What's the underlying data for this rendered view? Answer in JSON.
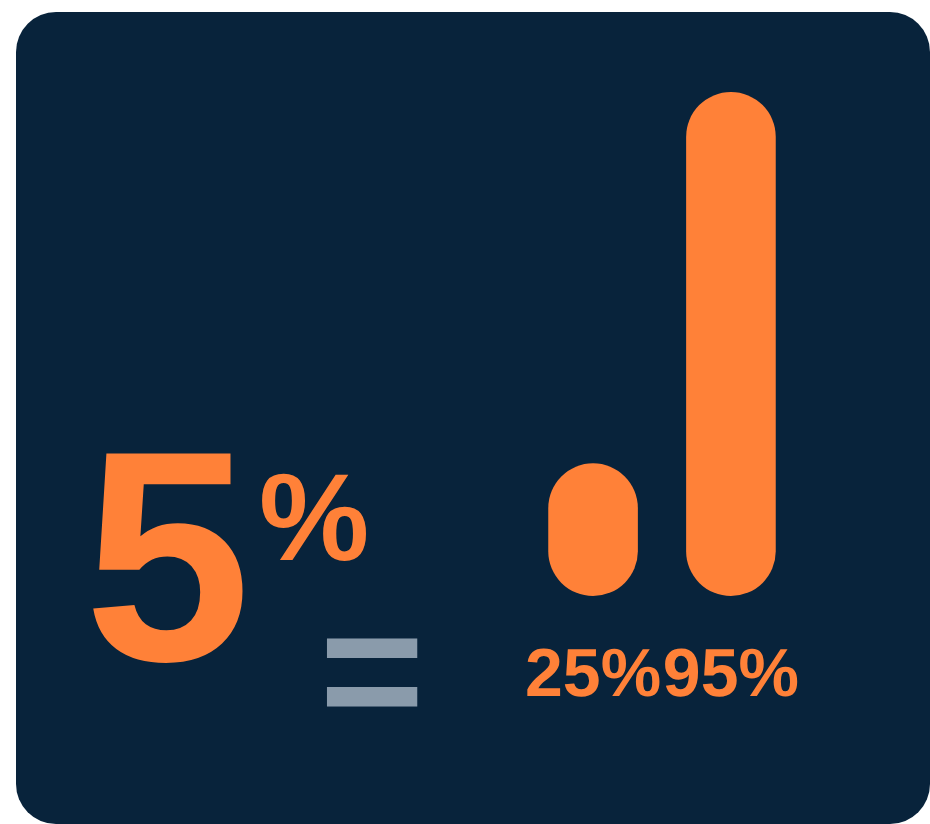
{
  "chart_data": {
    "type": "bar",
    "categories": [
      null,
      null
    ],
    "values": [
      25,
      95
    ],
    "value_labels": [
      "25%",
      "95%"
    ],
    "color": "#ff8138",
    "annotations": [
      "5%",
      "="
    ]
  }
}
